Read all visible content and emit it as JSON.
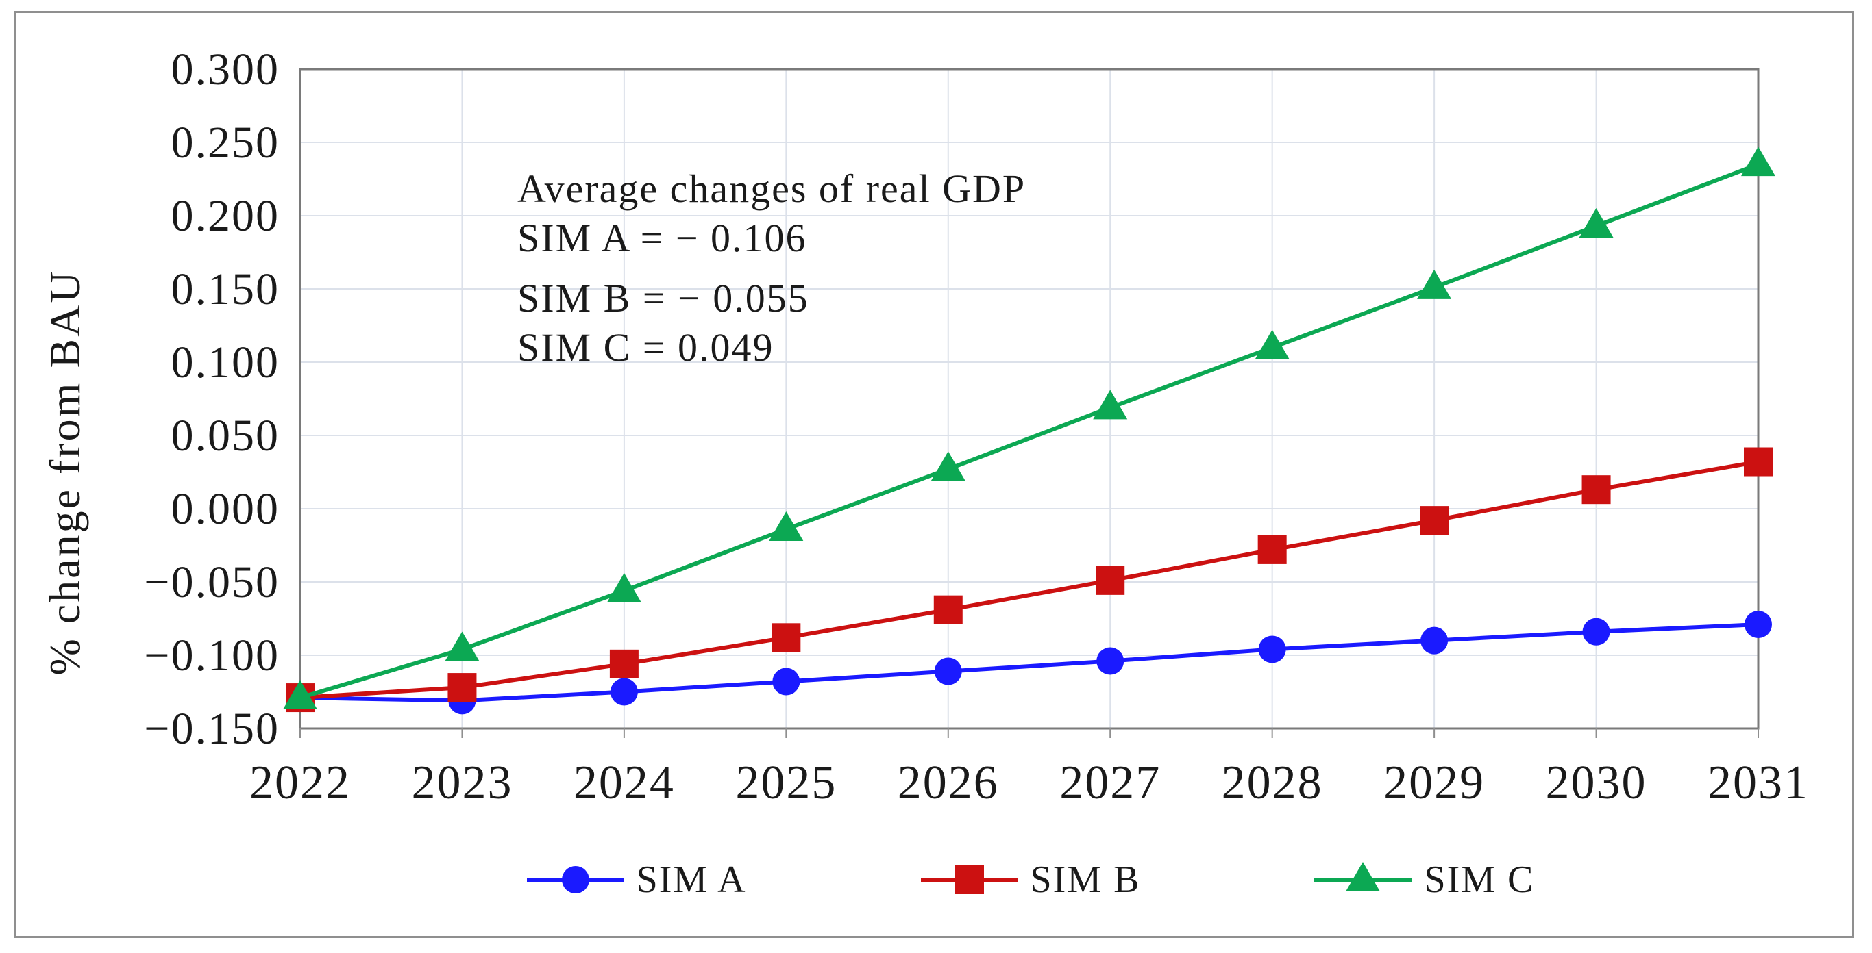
{
  "chart_data": {
    "type": "line",
    "x": [
      2022,
      2023,
      2024,
      2025,
      2026,
      2027,
      2028,
      2029,
      2030,
      2031
    ],
    "xlabel": "",
    "ylabel": "% change from BAU",
    "ylim": [
      -0.15,
      0.3
    ],
    "ytick_step": 0.05,
    "ytick_decimals": 3,
    "grid": true,
    "legend_position": "bottom",
    "annotation": {
      "title": "Average changes of real GDP",
      "lines": [
        "SIM A = − 0.106",
        "SIM B  = − 0.055",
        "SIM C  = 0.049"
      ]
    },
    "series": [
      {
        "name": "SIM A",
        "marker": "circle",
        "color": "#1a1aff",
        "average_change": -0.106,
        "values": [
          -0.129,
          -0.131,
          -0.125,
          -0.118,
          -0.111,
          -0.104,
          -0.096,
          -0.09,
          -0.084,
          -0.079
        ]
      },
      {
        "name": "SIM B",
        "marker": "square",
        "color": "#cc1111",
        "average_change": -0.055,
        "values": [
          -0.129,
          -0.122,
          -0.106,
          -0.088,
          -0.069,
          -0.049,
          -0.028,
          -0.008,
          0.013,
          0.032
        ]
      },
      {
        "name": "SIM C",
        "marker": "triangle",
        "color": "#0ca853",
        "average_change": 0.049,
        "values": [
          -0.129,
          -0.096,
          -0.056,
          -0.014,
          0.027,
          0.069,
          0.11,
          0.151,
          0.193,
          0.235
        ]
      }
    ],
    "colors": {
      "grid": "#dce1ea",
      "axis_border": "#7a7a7a",
      "tick": "#8f8f8f",
      "text": "#1a1a1a",
      "figure_border": "#8f8f8f"
    }
  }
}
